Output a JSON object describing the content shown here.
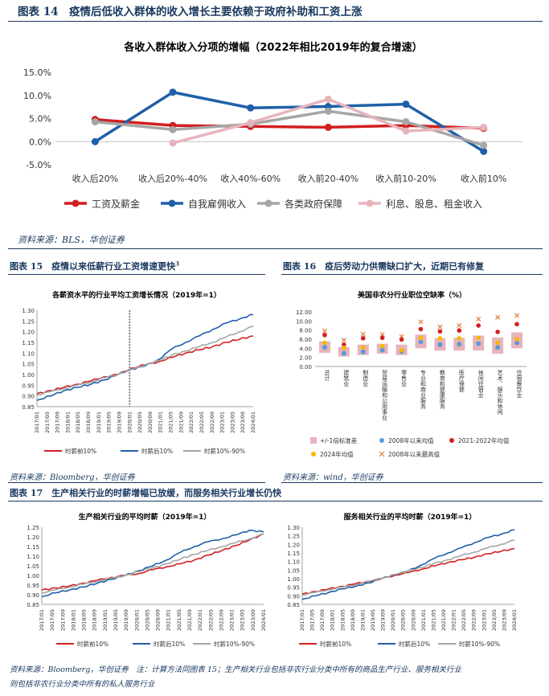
{
  "fig14": {
    "heading": "图表 14　疫情后低收入群体的收入增长主要依赖于政府补助和工资上涨",
    "source": "资料来源：BLS，华创证券"
  },
  "fig15": {
    "heading": "图表 15　疫情以来低薪行业工资增速更快",
    "heading_sup": "3",
    "source": "资料来源：Bloomberg，华创证券"
  },
  "fig16": {
    "heading": "图表 16　疫后劳动力供需缺口扩大，近期已有修复",
    "source": "资料来源：wind，华创证券"
  },
  "fig17": {
    "heading": "图表 17　生产相关行业的时薪增幅已放缓，而服务相关行业增长仍快",
    "source_line1": "资料来源：Bloomberg，华创证券　注：计算方法同图表 15；生产相关行业包括非农行业分类中所有的商品生产行业、服务相关行业",
    "source_line2": "则包括非农行业分类中所有的私人服务行业"
  },
  "colors": {
    "red": "#d21f1f",
    "blue": "#1f5fa8",
    "gray": "#a6a6a6",
    "pink": "#e8b4bc",
    "navy": "#17375e",
    "orange": "#f5b800",
    "scatter_blue": "#5b9bd5",
    "cross": "#e07b39"
  },
  "chart_data": [
    {
      "id": "fig14",
      "type": "line",
      "title": "各收入群体收入分项的增幅（2022年相比2019年的复合增速）",
      "categories": [
        "收入后20%",
        "收入后20%-40%",
        "收入40%-60%",
        "收入前20-40%",
        "收入前10-20%",
        "收入前10%"
      ],
      "y_ticks": [
        "15.0%",
        "10.0%",
        "5.0%",
        "0.0%",
        "-5.0%"
      ],
      "ylim": [
        -5,
        15
      ],
      "grid": false,
      "legend_position": "bottom",
      "series": [
        {
          "name": "工资及薪金",
          "color": "red",
          "values": [
            4.8,
            3.5,
            3.3,
            3.1,
            3.5,
            2.9
          ]
        },
        {
          "name": "自我雇佣收入",
          "color": "blue",
          "values": [
            0.0,
            10.7,
            7.3,
            7.6,
            8.1,
            -2.1
          ]
        },
        {
          "name": "各类政府保障",
          "color": "gray",
          "values": [
            4.3,
            2.6,
            3.8,
            6.6,
            4.3,
            -0.8
          ]
        },
        {
          "name": "利息、股息、租金收入",
          "color": "pink",
          "values": [
            null,
            -0.3,
            4.1,
            9.2,
            2.3,
            3.1
          ]
        }
      ]
    },
    {
      "id": "fig15",
      "type": "line",
      "title": "各薪资水平的行业平均工资增长情况（2019年=1）",
      "x_labels": [
        "2017/01",
        "2017/05",
        "2017/09",
        "2018/01",
        "2018/05",
        "2018/09",
        "2019/01",
        "2019/05",
        "2019/09",
        "2020/01",
        "2020/05",
        "2020/09",
        "2021/01",
        "2021/05",
        "2021/09",
        "2022/01",
        "2022/05",
        "2022/09",
        "2023/01",
        "2023/05",
        "2023/09",
        "2024/01"
      ],
      "y_ticks": [
        "1.30",
        "1.25",
        "1.20",
        "1.15",
        "1.10",
        "1.05",
        "1.00",
        "0.95",
        "0.90",
        "0.85"
      ],
      "ylim": [
        0.85,
        1.3
      ],
      "legend_position": "bottom",
      "series": [
        {
          "name": "时薪前10%",
          "color": "red",
          "values": [
            0.91,
            0.925,
            0.94,
            0.955,
            0.97,
            0.99,
            1.0,
            1.03,
            1.045,
            1.06,
            1.08,
            1.1,
            1.115,
            1.13,
            1.15,
            1.165,
            1.18
          ]
        },
        {
          "name": "时薪后10%",
          "color": "blue",
          "values": [
            0.88,
            0.9,
            0.925,
            0.94,
            0.955,
            0.975,
            1.0,
            1.025,
            1.04,
            1.07,
            1.12,
            1.15,
            1.18,
            1.21,
            1.24,
            1.26,
            1.28
          ]
        },
        {
          "name": "时薪10%-90%",
          "color": "gray",
          "values": [
            0.905,
            0.92,
            0.935,
            0.95,
            0.965,
            0.985,
            1.0,
            1.025,
            1.045,
            1.065,
            1.09,
            1.11,
            1.13,
            1.15,
            1.175,
            1.2,
            1.225
          ]
        }
      ]
    },
    {
      "id": "fig16",
      "type": "scatter",
      "title": "美国非农分行业职位空缺率（%）",
      "categories": [
        "总计",
        "建筑业",
        "制造业",
        "贸易运输和公用事业",
        "零售业",
        "专业和商业服务",
        "教育和健康服务",
        "医疗保健",
        "休闲住宿业",
        "艺术、娱乐和休闲",
        "住宿餐饮业"
      ],
      "y_ticks": [
        "12.00",
        "10.00",
        "8.00",
        "6.00",
        "4.00",
        "2.00",
        "0.00"
      ],
      "ylim": [
        0,
        12
      ],
      "legend_position": "bottom",
      "series": [
        {
          "name": "+/-1倍标准差",
          "type": "band",
          "low": [
            3.0,
            2.2,
            2.5,
            2.8,
            2.5,
            4.0,
            3.5,
            3.5,
            3.5,
            2.8,
            4.0
          ],
          "high": [
            5.5,
            4.3,
            4.8,
            5.0,
            4.8,
            7.0,
            6.2,
            6.3,
            6.8,
            6.4,
            7.5
          ]
        },
        {
          "name": "2008年以来均值",
          "values": [
            4.2,
            2.9,
            3.2,
            3.6,
            3.3,
            5.4,
            4.8,
            4.9,
            5.0,
            4.2,
            5.2
          ]
        },
        {
          "name": "2021-2022年均值",
          "values": [
            6.9,
            4.8,
            6.2,
            6.3,
            5.9,
            8.2,
            7.7,
            7.9,
            9.0,
            7.6,
            9.3
          ]
        },
        {
          "name": "2024年均值",
          "values": [
            5.2,
            4.1,
            4.2,
            4.5,
            3.6,
            6.3,
            6.2,
            6.2,
            6.3,
            5.2,
            6.0
          ]
        },
        {
          "name": "2008年以来最高值",
          "values": [
            7.8,
            5.8,
            7.1,
            7.0,
            6.6,
            9.8,
            8.7,
            9.0,
            10.4,
            10.8,
            11.2
          ]
        }
      ]
    },
    {
      "id": "fig17a",
      "type": "line",
      "title": "生产相关行业的平均时薪（2019年=1）",
      "x_labels": [
        "2017/01",
        "2017/05",
        "2017/09",
        "2018/01",
        "2018/05",
        "2018/09",
        "2019/01",
        "2019/05",
        "2019/09",
        "2020/01",
        "2020/05",
        "2020/09",
        "2021/01",
        "2021/05",
        "2021/09",
        "2022/01",
        "2022/05",
        "2022/09",
        "2023/01",
        "2023/05",
        "2023/09",
        "2024/01"
      ],
      "y_ticks": [
        "1.25",
        "1.20",
        "1.15",
        "1.10",
        "1.05",
        "1.00",
        "0.95",
        "0.90",
        "0.85"
      ],
      "ylim": [
        0.85,
        1.25
      ],
      "legend_position": "bottom",
      "series": [
        {
          "name": "时薪前10%",
          "color": "red",
          "values": [
            0.925,
            0.935,
            0.945,
            0.96,
            0.975,
            0.99,
            1.0,
            1.01,
            1.03,
            1.045,
            1.06,
            1.08,
            1.105,
            1.13,
            1.155,
            1.185,
            1.215
          ]
        },
        {
          "name": "时薪后10%",
          "color": "blue",
          "values": [
            0.89,
            0.91,
            0.925,
            0.94,
            0.96,
            0.98,
            1.0,
            1.025,
            1.05,
            1.08,
            1.12,
            1.15,
            1.175,
            1.19,
            1.21,
            1.235,
            1.225
          ]
        },
        {
          "name": "时薪10%-90%",
          "color": "gray",
          "values": [
            0.91,
            0.925,
            0.94,
            0.955,
            0.97,
            0.985,
            1.0,
            1.02,
            1.04,
            1.06,
            1.085,
            1.11,
            1.13,
            1.15,
            1.17,
            1.19,
            1.215
          ]
        }
      ]
    },
    {
      "id": "fig17b",
      "type": "line",
      "title": "服务相关行业的平均时薪（2019年=1）",
      "x_labels": [
        "2017/01",
        "2017/05",
        "2017/09",
        "2018/01",
        "2018/05",
        "2018/09",
        "2019/01",
        "2019/05",
        "2019/09",
        "2020/01",
        "2020/05",
        "2020/09",
        "2021/01",
        "2021/05",
        "2021/09",
        "2022/01",
        "2022/05",
        "2022/09",
        "2023/01",
        "2023/05",
        "2023/09",
        "2024/01"
      ],
      "y_ticks": [
        "1.30",
        "1.25",
        "1.20",
        "1.15",
        "1.10",
        "1.05",
        "1.00",
        "0.95",
        "0.90",
        "0.85"
      ],
      "ylim": [
        0.85,
        1.3
      ],
      "legend_position": "bottom",
      "series": [
        {
          "name": "时薪前10%",
          "color": "red",
          "values": [
            0.91,
            0.925,
            0.94,
            0.955,
            0.97,
            0.985,
            1.0,
            1.02,
            1.035,
            1.055,
            1.075,
            1.095,
            1.11,
            1.125,
            1.145,
            1.16,
            1.175
          ]
        },
        {
          "name": "时薪后10%",
          "color": "blue",
          "values": [
            0.88,
            0.9,
            0.92,
            0.94,
            0.955,
            0.975,
            1.0,
            1.025,
            1.045,
            1.08,
            1.12,
            1.15,
            1.18,
            1.21,
            1.24,
            1.26,
            1.285
          ]
        },
        {
          "name": "时薪10%-90%",
          "color": "gray",
          "values": [
            0.905,
            0.92,
            0.935,
            0.95,
            0.965,
            0.985,
            1.0,
            1.025,
            1.045,
            1.065,
            1.09,
            1.11,
            1.135,
            1.155,
            1.18,
            1.2,
            1.225
          ]
        }
      ]
    }
  ]
}
